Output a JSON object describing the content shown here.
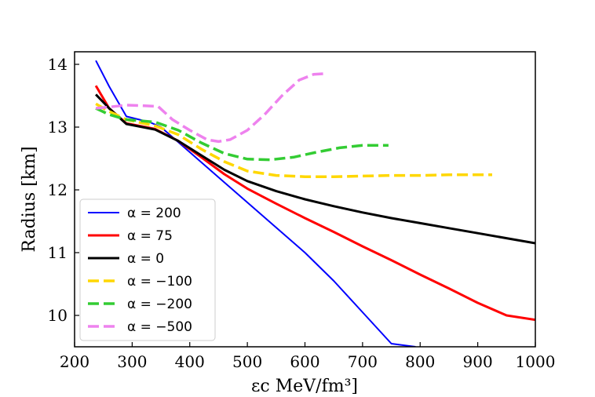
{
  "chart_data": {
    "type": "line",
    "xlabel": "εc MeV/fm³]",
    "ylabel": "Radius [km]",
    "xlim": [
      200,
      1000
    ],
    "ylim": [
      9.5,
      14.2
    ],
    "xticks": [
      200,
      300,
      400,
      500,
      600,
      700,
      800,
      900,
      1000
    ],
    "yticks": [
      10,
      11,
      12,
      13,
      14
    ],
    "legend_position": "lower-left",
    "grid": false,
    "series": [
      {
        "name": "α = 200",
        "color": "#0000ff",
        "dash": "solid",
        "width": 2,
        "x": [
          237,
          260,
          290,
          330,
          350,
          400,
          450,
          500,
          550,
          600,
          650,
          700,
          750,
          792
        ],
        "y": [
          14.06,
          13.65,
          13.17,
          13.08,
          13.0,
          12.6,
          12.2,
          11.8,
          11.4,
          11.0,
          10.55,
          10.05,
          9.55,
          9.5
        ]
      },
      {
        "name": "α = 75",
        "color": "#ff0000",
        "dash": "solid",
        "width": 3,
        "x": [
          237,
          260,
          290,
          340,
          380,
          420,
          460,
          500,
          550,
          600,
          650,
          700,
          750,
          800,
          850,
          900,
          950,
          1000
        ],
        "y": [
          13.66,
          13.3,
          13.06,
          12.97,
          12.78,
          12.52,
          12.25,
          12.02,
          11.78,
          11.55,
          11.33,
          11.1,
          10.88,
          10.65,
          10.43,
          10.2,
          10.0,
          9.93
        ]
      },
      {
        "name": "α = 0",
        "color": "#000000",
        "dash": "solid",
        "width": 3,
        "x": [
          237,
          260,
          290,
          340,
          380,
          420,
          460,
          500,
          550,
          600,
          650,
          700,
          750,
          800,
          850,
          900,
          950,
          1000
        ],
        "y": [
          13.52,
          13.3,
          13.05,
          12.96,
          12.78,
          12.55,
          12.32,
          12.14,
          11.98,
          11.85,
          11.74,
          11.64,
          11.55,
          11.47,
          11.39,
          11.31,
          11.23,
          11.15
        ]
      },
      {
        "name": "α = −100",
        "color": "#ffd700",
        "dash": "dashed",
        "width": 3.5,
        "x": [
          237,
          260,
          290,
          340,
          380,
          420,
          460,
          500,
          550,
          600,
          650,
          700,
          750,
          800,
          850,
          900,
          925
        ],
        "y": [
          13.37,
          13.25,
          13.12,
          13.02,
          12.88,
          12.65,
          12.45,
          12.3,
          12.23,
          12.21,
          12.21,
          12.22,
          12.23,
          12.23,
          12.24,
          12.24,
          12.24
        ]
      },
      {
        "name": "α = −200",
        "color": "#33cc33",
        "dash": "dashed",
        "width": 3.5,
        "x": [
          237,
          260,
          290,
          340,
          380,
          420,
          460,
          500,
          540,
          580,
          620,
          660,
          700,
          745
        ],
        "y": [
          13.3,
          13.2,
          13.12,
          13.08,
          12.95,
          12.75,
          12.58,
          12.49,
          12.48,
          12.52,
          12.6,
          12.67,
          12.71,
          12.71
        ]
      },
      {
        "name": "α = −500",
        "color": "#ee82ee",
        "dash": "dashed",
        "width": 3.5,
        "x": [
          237,
          260,
          290,
          320,
          345,
          370,
          400,
          430,
          450,
          470,
          500,
          530,
          560,
          590,
          615,
          632
        ],
        "y": [
          13.3,
          13.32,
          13.35,
          13.34,
          13.33,
          13.12,
          12.95,
          12.8,
          12.77,
          12.8,
          12.95,
          13.2,
          13.5,
          13.75,
          13.84,
          13.85
        ]
      }
    ]
  }
}
